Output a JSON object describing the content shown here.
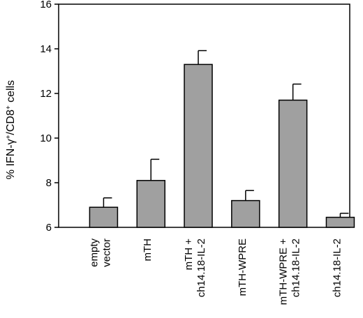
{
  "chart_data": {
    "type": "bar",
    "categories": [
      [
        "empty",
        "vector"
      ],
      [
        "mTH"
      ],
      [
        "mTH +",
        "ch14.18-IL-2"
      ],
      [
        "mTH-WPRE"
      ],
      [
        "mTH-WPRE +",
        "ch14.18-IL-2"
      ],
      [
        "ch14.18-IL-2"
      ]
    ],
    "values": [
      6.9,
      8.1,
      13.3,
      7.2,
      11.7,
      6.45
    ],
    "errors": [
      0.42,
      0.95,
      0.62,
      0.45,
      0.72,
      0.18
    ],
    "ylim": [
      6,
      16
    ],
    "yticks": [
      6,
      8,
      10,
      12,
      14,
      16
    ],
    "ylabel_parts": [
      "% IFN-γ",
      "+",
      "/CD8",
      "+",
      " cells"
    ],
    "bar_color": "#a0a0a0",
    "grid": false
  }
}
